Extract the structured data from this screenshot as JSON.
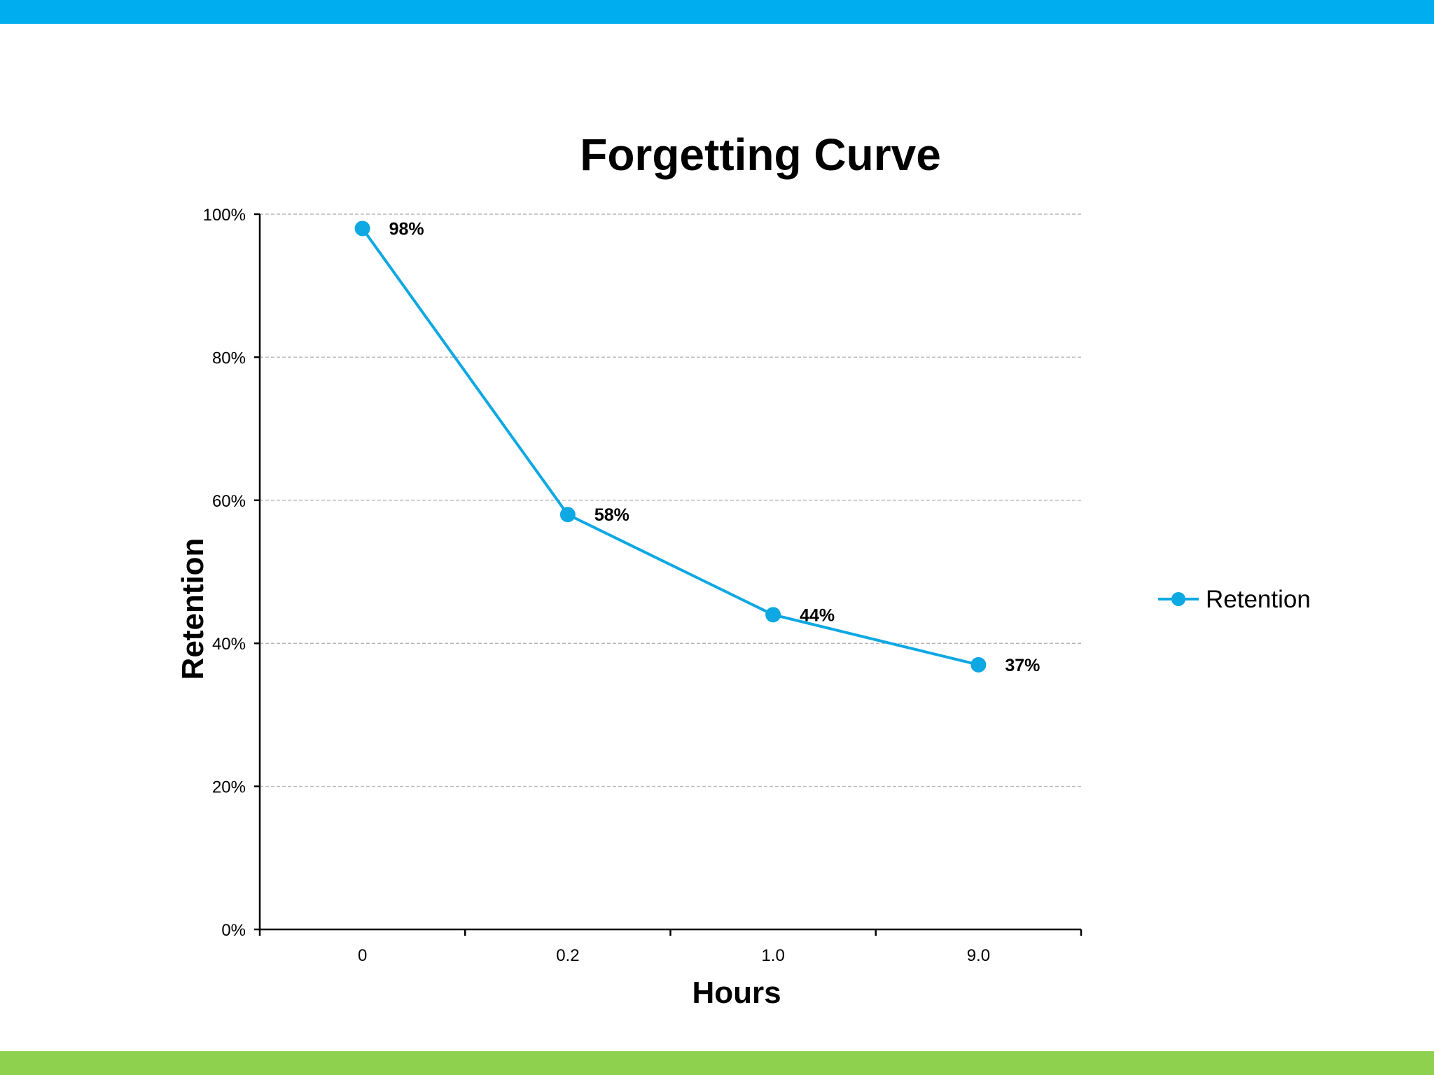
{
  "theme": {
    "top_bar_color": "#00AEEF",
    "bottom_bar_color": "#8DD14F",
    "series_color": "#0EA8E2"
  },
  "chart_data": {
    "type": "line",
    "title": "Forgetting Curve",
    "xlabel": "Hours",
    "ylabel": "Retention",
    "categories": [
      "0",
      "0.2",
      "1.0",
      "9.0"
    ],
    "series": [
      {
        "name": "Retention",
        "values": [
          0.98,
          0.58,
          0.44,
          0.37
        ],
        "labels": [
          "98%",
          "58%",
          "44%",
          "37%"
        ]
      }
    ],
    "ylim": [
      0,
      1
    ],
    "yticks": [
      0,
      0.2,
      0.4,
      0.6,
      0.8,
      1.0
    ],
    "ytick_labels": [
      "0%",
      "20%",
      "40%",
      "60%",
      "80%",
      "100%"
    ],
    "grid": true,
    "legend": "right"
  }
}
